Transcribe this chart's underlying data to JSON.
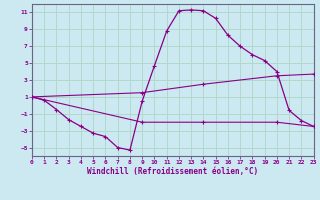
{
  "xlabel": "Windchill (Refroidissement éolien,°C)",
  "bg_color": "#cce8f0",
  "grid_color": "#b0d8cc",
  "line_color": "#880088",
  "spine_color": "#666688",
  "xlim": [
    0,
    23
  ],
  "ylim": [
    -6,
    12
  ],
  "yticks": [
    -5,
    -3,
    -1,
    1,
    3,
    5,
    7,
    9,
    11
  ],
  "xticks": [
    0,
    1,
    2,
    3,
    4,
    5,
    6,
    7,
    8,
    9,
    10,
    11,
    12,
    13,
    14,
    15,
    16,
    17,
    18,
    19,
    20,
    21,
    22,
    23
  ],
  "curve1_x": [
    0,
    1,
    2,
    3,
    4,
    5,
    6,
    7,
    8,
    9,
    10,
    11,
    12,
    13,
    14,
    15,
    16,
    17,
    18,
    19,
    20,
    21,
    22,
    23
  ],
  "curve1_y": [
    1,
    0.6,
    -0.5,
    -1.7,
    -2.5,
    -3.3,
    -3.7,
    -5.0,
    -5.3,
    0.5,
    4.7,
    8.8,
    11.2,
    11.3,
    11.2,
    10.3,
    8.3,
    7.0,
    6.0,
    5.3,
    4.0,
    -0.6,
    -1.8,
    -2.5
  ],
  "curve2_x": [
    0,
    9,
    14,
    20,
    23
  ],
  "curve2_y": [
    1,
    -2.0,
    -2.0,
    -2.0,
    -2.5
  ],
  "curve3_x": [
    0,
    9,
    14,
    20,
    23
  ],
  "curve3_y": [
    1,
    1.5,
    2.5,
    3.5,
    3.7
  ]
}
